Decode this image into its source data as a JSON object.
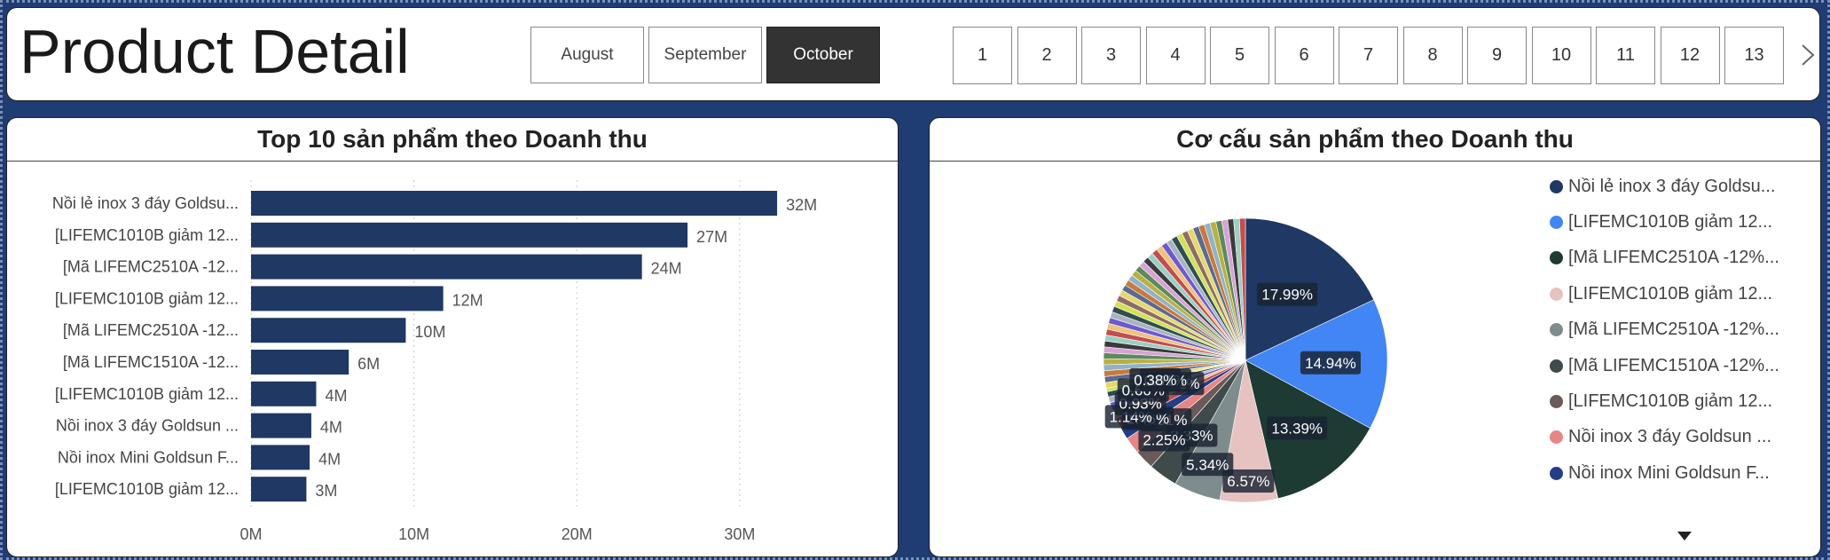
{
  "page": {
    "title": "Product Detail"
  },
  "months": {
    "items": [
      "August",
      "September",
      "October"
    ],
    "selected": "October"
  },
  "pagination": {
    "pages": [
      "1",
      "2",
      "3",
      "4",
      "5",
      "6",
      "7",
      "8",
      "9",
      "10",
      "11",
      "12",
      "13"
    ],
    "next_icon": "chevron-right-icon"
  },
  "colors": {
    "background": "#1f3c73",
    "bar": "#1f3864",
    "pie": [
      "#1f3864",
      "#4285f4",
      "#1d3a33",
      "#e6c3c0",
      "#7f8c8d",
      "#3f4a4a",
      "#6b5a5a",
      "#e88585",
      "#243e86"
    ]
  },
  "bar_chart": {
    "chart_data": {
      "type": "bar",
      "orientation": "horizontal",
      "title": "Top 10 sản phẩm theo Doanh thu",
      "categories": [
        "Nồi lẻ inox 3 đáy Goldsu...",
        "[LIFEMC1010B giảm 12...",
        "[Mã LIFEMC2510A -12...",
        "[LIFEMC1010B giảm 12...",
        "[Mã LIFEMC2510A -12...",
        "[Mã LIFEMC1510A -12...",
        "[LIFEMC1010B giảm 12...",
        "Nồi inox 3 đáy Goldsun ...",
        "Nồi inox Mini Goldsun F...",
        "[LIFEMC1010B giảm 12..."
      ],
      "values": [
        32.3,
        26.8,
        24.0,
        11.8,
        9.5,
        6.0,
        4.0,
        3.7,
        3.6,
        3.4
      ],
      "data_labels": [
        "32M",
        "27M",
        "24M",
        "12M",
        "10M",
        "6M",
        "4M",
        "4M",
        "4M",
        "3M"
      ],
      "x_ticks": [
        0,
        10,
        20,
        30
      ],
      "x_tick_labels": [
        "0M",
        "10M",
        "20M",
        "30M"
      ],
      "xlim": [
        0,
        36
      ],
      "grid": true
    }
  },
  "pie_chart": {
    "chart_data": {
      "type": "pie",
      "title": "Cơ cấu sản phẩm theo Doanh thu",
      "slices_labeled": [
        17.99,
        14.94,
        13.39,
        6.57,
        5.34,
        3.33,
        2.25,
        1.91,
        1.46,
        1.14,
        0.93,
        0.92,
        0.66,
        0.61,
        0.38
      ],
      "slice_labels": [
        "17.99%",
        "14.94%",
        "13.39%",
        "6.57%",
        "5.34%",
        "3.33%",
        "2.25%",
        "1.91%",
        "1.46%",
        "1.14%",
        "0.93%",
        "0.92%",
        "0.66%",
        "0.61%",
        "0.38%"
      ],
      "legend_placement": "right",
      "legend": [
        "Nồi lẻ inox 3 đáy Goldsu...",
        "[LIFEMC1010B giảm 12...",
        "[Mã LIFEMC2510A -12%...",
        "[LIFEMC1010B giảm 12...",
        "[Mã LIFEMC2510A -12%...",
        "[Mã LIFEMC1510A -12%...",
        "[LIFEMC1010B giảm 12...",
        "Nồi inox 3 đáy Goldsun ...",
        "Nồi inox Mini Goldsun F..."
      ],
      "legend_scroll_icon": "caret-down-icon"
    }
  }
}
